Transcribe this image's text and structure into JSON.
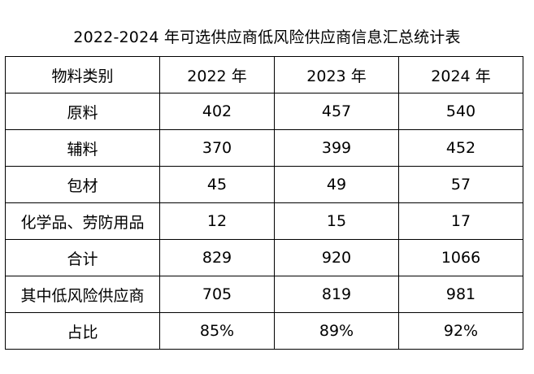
{
  "title": "2022-2024 年可选供应商低风险供应商信息汇总统计表",
  "table": {
    "headers": [
      "物料类别",
      "2022 年",
      "2023 年",
      "2024 年"
    ],
    "rows": [
      [
        "原料",
        "402",
        "457",
        "540"
      ],
      [
        "辅料",
        "370",
        "399",
        "452"
      ],
      [
        "包材",
        "45",
        "49",
        "57"
      ],
      [
        "化学品、劳防用品",
        "12",
        "15",
        "17"
      ],
      [
        "合计",
        "829",
        "920",
        "1066"
      ],
      [
        "其中低风险供应商",
        "705",
        "819",
        "981"
      ],
      [
        "占比",
        "85%",
        "89%",
        "92%"
      ]
    ]
  }
}
